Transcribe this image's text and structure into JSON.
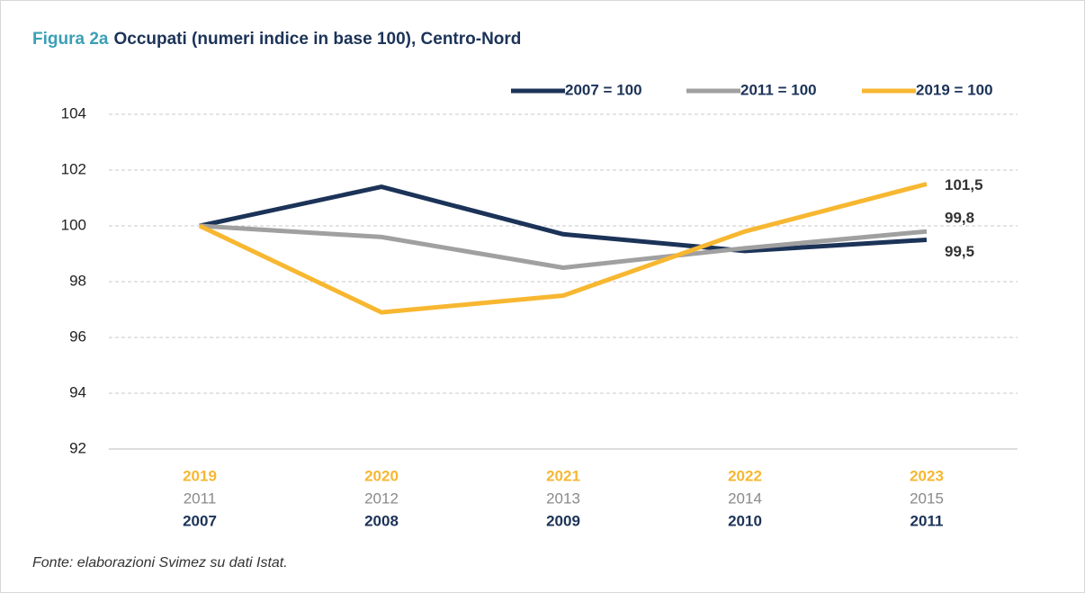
{
  "chart_data": {
    "type": "line",
    "figure_label": "Figura 2a",
    "title": "Occupati (numeri indice in base 100), Centro-Nord",
    "source": "Fonte: elaborazioni Svimez su dati Istat.",
    "ylim": [
      92,
      104
    ],
    "yticks": [
      92,
      94,
      96,
      98,
      100,
      102,
      104
    ],
    "grid": true,
    "legend": "top-right",
    "series": [
      {
        "name": "2007 = 100",
        "color": "#1c3358",
        "categories": [
          "2007",
          "2008",
          "2009",
          "2010",
          "2011"
        ],
        "values": [
          100,
          101.4,
          99.7,
          99.1,
          99.5
        ],
        "value_labels": [
          null,
          null,
          null,
          null,
          "99,5"
        ]
      },
      {
        "name": "2011 = 100",
        "color": "#a0a0a0",
        "categories": [
          "2011",
          "2012",
          "2013",
          "2014",
          "2015"
        ],
        "values": [
          100,
          99.6,
          98.5,
          99.2,
          99.8
        ],
        "value_labels": [
          null,
          null,
          null,
          null,
          "99,8"
        ]
      },
      {
        "name": "2019 = 100",
        "color": "#f7b731",
        "categories": [
          "2019",
          "2020",
          "2021",
          "2022",
          "2023"
        ],
        "values": [
          100,
          96.9,
          97.5,
          99.8,
          101.5
        ],
        "value_labels": [
          null,
          null,
          null,
          null,
          "101,5"
        ]
      }
    ]
  }
}
